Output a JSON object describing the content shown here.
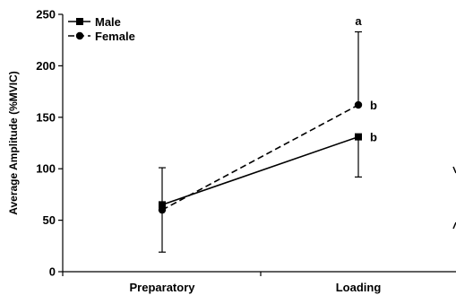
{
  "chart_data": {
    "type": "line",
    "categories": [
      "Preparatory",
      "Loading"
    ],
    "ylabel": "Average Amplitude (%MVIC)",
    "xlabel": "",
    "ylim": [
      0,
      250
    ],
    "yticks": [
      0,
      50,
      100,
      150,
      200,
      250
    ],
    "grid": false,
    "legend_position": "top-left",
    "series": [
      {
        "name": "Male",
        "marker": "square",
        "line_style": "solid",
        "values": [
          65,
          131
        ],
        "error_upper": [
          101,
          131
        ],
        "error_lower": [
          65,
          92
        ],
        "annotations": [
          "",
          "b"
        ]
      },
      {
        "name": "Female",
        "marker": "circle",
        "line_style": "dashed",
        "values": [
          60,
          162
        ],
        "error_upper": [
          60,
          233
        ],
        "error_lower": [
          19,
          162
        ],
        "annotations": [
          "",
          "b"
        ]
      }
    ],
    "extra_annotations": [
      {
        "category": "Loading",
        "y": 244,
        "text": "a"
      }
    ]
  }
}
